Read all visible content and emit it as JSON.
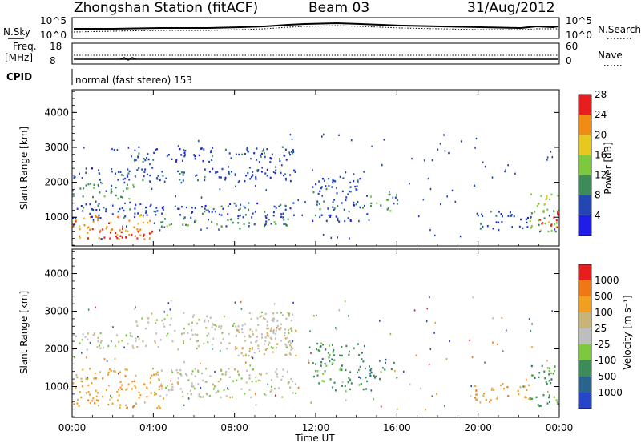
{
  "header": {
    "station": "Zhongshan Station (fitACF)",
    "beam": "Beam 03",
    "date": "31/Aug/2012"
  },
  "noise_panel": {
    "left_label": "N.Sky",
    "left_ticks": [
      "10^5",
      "10^0"
    ],
    "right_ticks": [
      "10^5",
      "10^0"
    ],
    "right_label": "N.Search"
  },
  "freq_panel": {
    "left_label_1": "Freq.",
    "left_label_2": "[MHz]",
    "left_ticks": [
      "18",
      "8"
    ],
    "right_ticks": [
      "60",
      "0"
    ],
    "right_label": "Nave"
  },
  "cpid_panel": {
    "label": "CPID",
    "program": "normal (fast stereo) 153"
  },
  "colors": {
    "noise_line": "#000000",
    "data_low": "#2844b4",
    "data_mid": "#3c8c5a",
    "data_high": "#e81e1e"
  },
  "chart_data": [
    {
      "type": "heatmap",
      "name": "power",
      "ylabel": "Slant Range [km]",
      "yticks": [
        "1000",
        "2000",
        "3000",
        "4000"
      ],
      "ylim": [
        180,
        4650
      ],
      "xticks": [
        "00:00",
        "04:00",
        "08:00",
        "12:00",
        "16:00",
        "20:00",
        "00:00"
      ],
      "xlim": [
        0,
        24
      ],
      "colorbar_label": "Power [dB]",
      "colorbar_ticks": [
        "4",
        "8",
        "12",
        "16",
        "20",
        "24",
        "28"
      ],
      "colorbar_colors": [
        "#1e1ee6",
        "#2346b4",
        "#3c8c5a",
        "#7dc83c",
        "#e6c81e",
        "#f08c14",
        "#e81e1e"
      ],
      "scatter_regions": [
        {
          "t0": 0.0,
          "t1": 11.0,
          "r0": 2050,
          "r1": 2450,
          "level": 1
        },
        {
          "t0": 3.0,
          "t1": 11.0,
          "r0": 2600,
          "r1": 3050,
          "level": 1
        },
        {
          "t0": 0.0,
          "t1": 3.0,
          "r0": 1550,
          "r1": 2000,
          "level": 2
        },
        {
          "t0": 0.0,
          "t1": 11.2,
          "r0": 1000,
          "r1": 1450,
          "level": 1
        },
        {
          "t0": 4.0,
          "t1": 11.0,
          "r0": 700,
          "r1": 1000,
          "level": 2
        },
        {
          "t0": 0.0,
          "t1": 4.0,
          "r0": 400,
          "r1": 1100,
          "level": 5
        },
        {
          "t0": 1.0,
          "t1": 4.0,
          "r0": 400,
          "r1": 700,
          "level": 6
        },
        {
          "t0": 11.8,
          "t1": 14.5,
          "r0": 900,
          "r1": 2200,
          "level": 1
        },
        {
          "t0": 14.5,
          "t1": 16.0,
          "r0": 1200,
          "r1": 1700,
          "level": 2
        },
        {
          "t0": 19.8,
          "t1": 22.5,
          "r0": 700,
          "r1": 1200,
          "level": 1
        },
        {
          "t0": 22.5,
          "t1": 24.0,
          "r0": 600,
          "r1": 1700,
          "level": 3
        },
        {
          "t0": 23.0,
          "t1": 24.0,
          "r0": 700,
          "r1": 1200,
          "level": 6
        }
      ]
    },
    {
      "type": "heatmap",
      "name": "velocity",
      "ylabel": "Slant Range [km]",
      "yticks": [
        "1000",
        "2000",
        "3000",
        "4000"
      ],
      "ylim": [
        180,
        4650
      ],
      "xticks": [
        "00:00",
        "04:00",
        "08:00",
        "12:00",
        "16:00",
        "20:00",
        "00:00"
      ],
      "xlim": [
        0,
        24
      ],
      "xlabel": "Time UT",
      "colorbar_label": "Velocity [m s⁻¹]",
      "colorbar_ticks": [
        "1000",
        "500",
        "100",
        "25",
        "-25",
        "-100",
        "-500",
        "-1000"
      ],
      "colorbar_colors": [
        "#2846c8",
        "#28648c",
        "#3c8c5a",
        "#7dc83c",
        "#bebebe",
        "#c8b478",
        "#f0a01e",
        "#f07814",
        "#e81e1e"
      ],
      "scatter_regions": [
        {
          "t0": 0.0,
          "t1": 11.0,
          "r0": 2000,
          "r1": 2450,
          "level": 4
        },
        {
          "t0": 3.0,
          "t1": 11.0,
          "r0": 2500,
          "r1": 3000,
          "level": 4
        },
        {
          "t0": 0.0,
          "t1": 4.5,
          "r0": 450,
          "r1": 1500,
          "level": 6
        },
        {
          "t0": 4.0,
          "t1": 11.0,
          "r0": 700,
          "r1": 1500,
          "level": 4
        },
        {
          "t0": 8.0,
          "t1": 11.0,
          "r0": 1800,
          "r1": 2600,
          "level": 5
        },
        {
          "t0": 11.8,
          "t1": 14.5,
          "r0": 900,
          "r1": 2200,
          "level": 2
        },
        {
          "t0": 14.5,
          "t1": 16.0,
          "r0": 1200,
          "r1": 1700,
          "level": 2
        },
        {
          "t0": 19.8,
          "t1": 22.5,
          "r0": 600,
          "r1": 1100,
          "level": 6
        },
        {
          "t0": 22.5,
          "t1": 24.0,
          "r0": 500,
          "r1": 1600,
          "level": 2
        }
      ]
    }
  ]
}
